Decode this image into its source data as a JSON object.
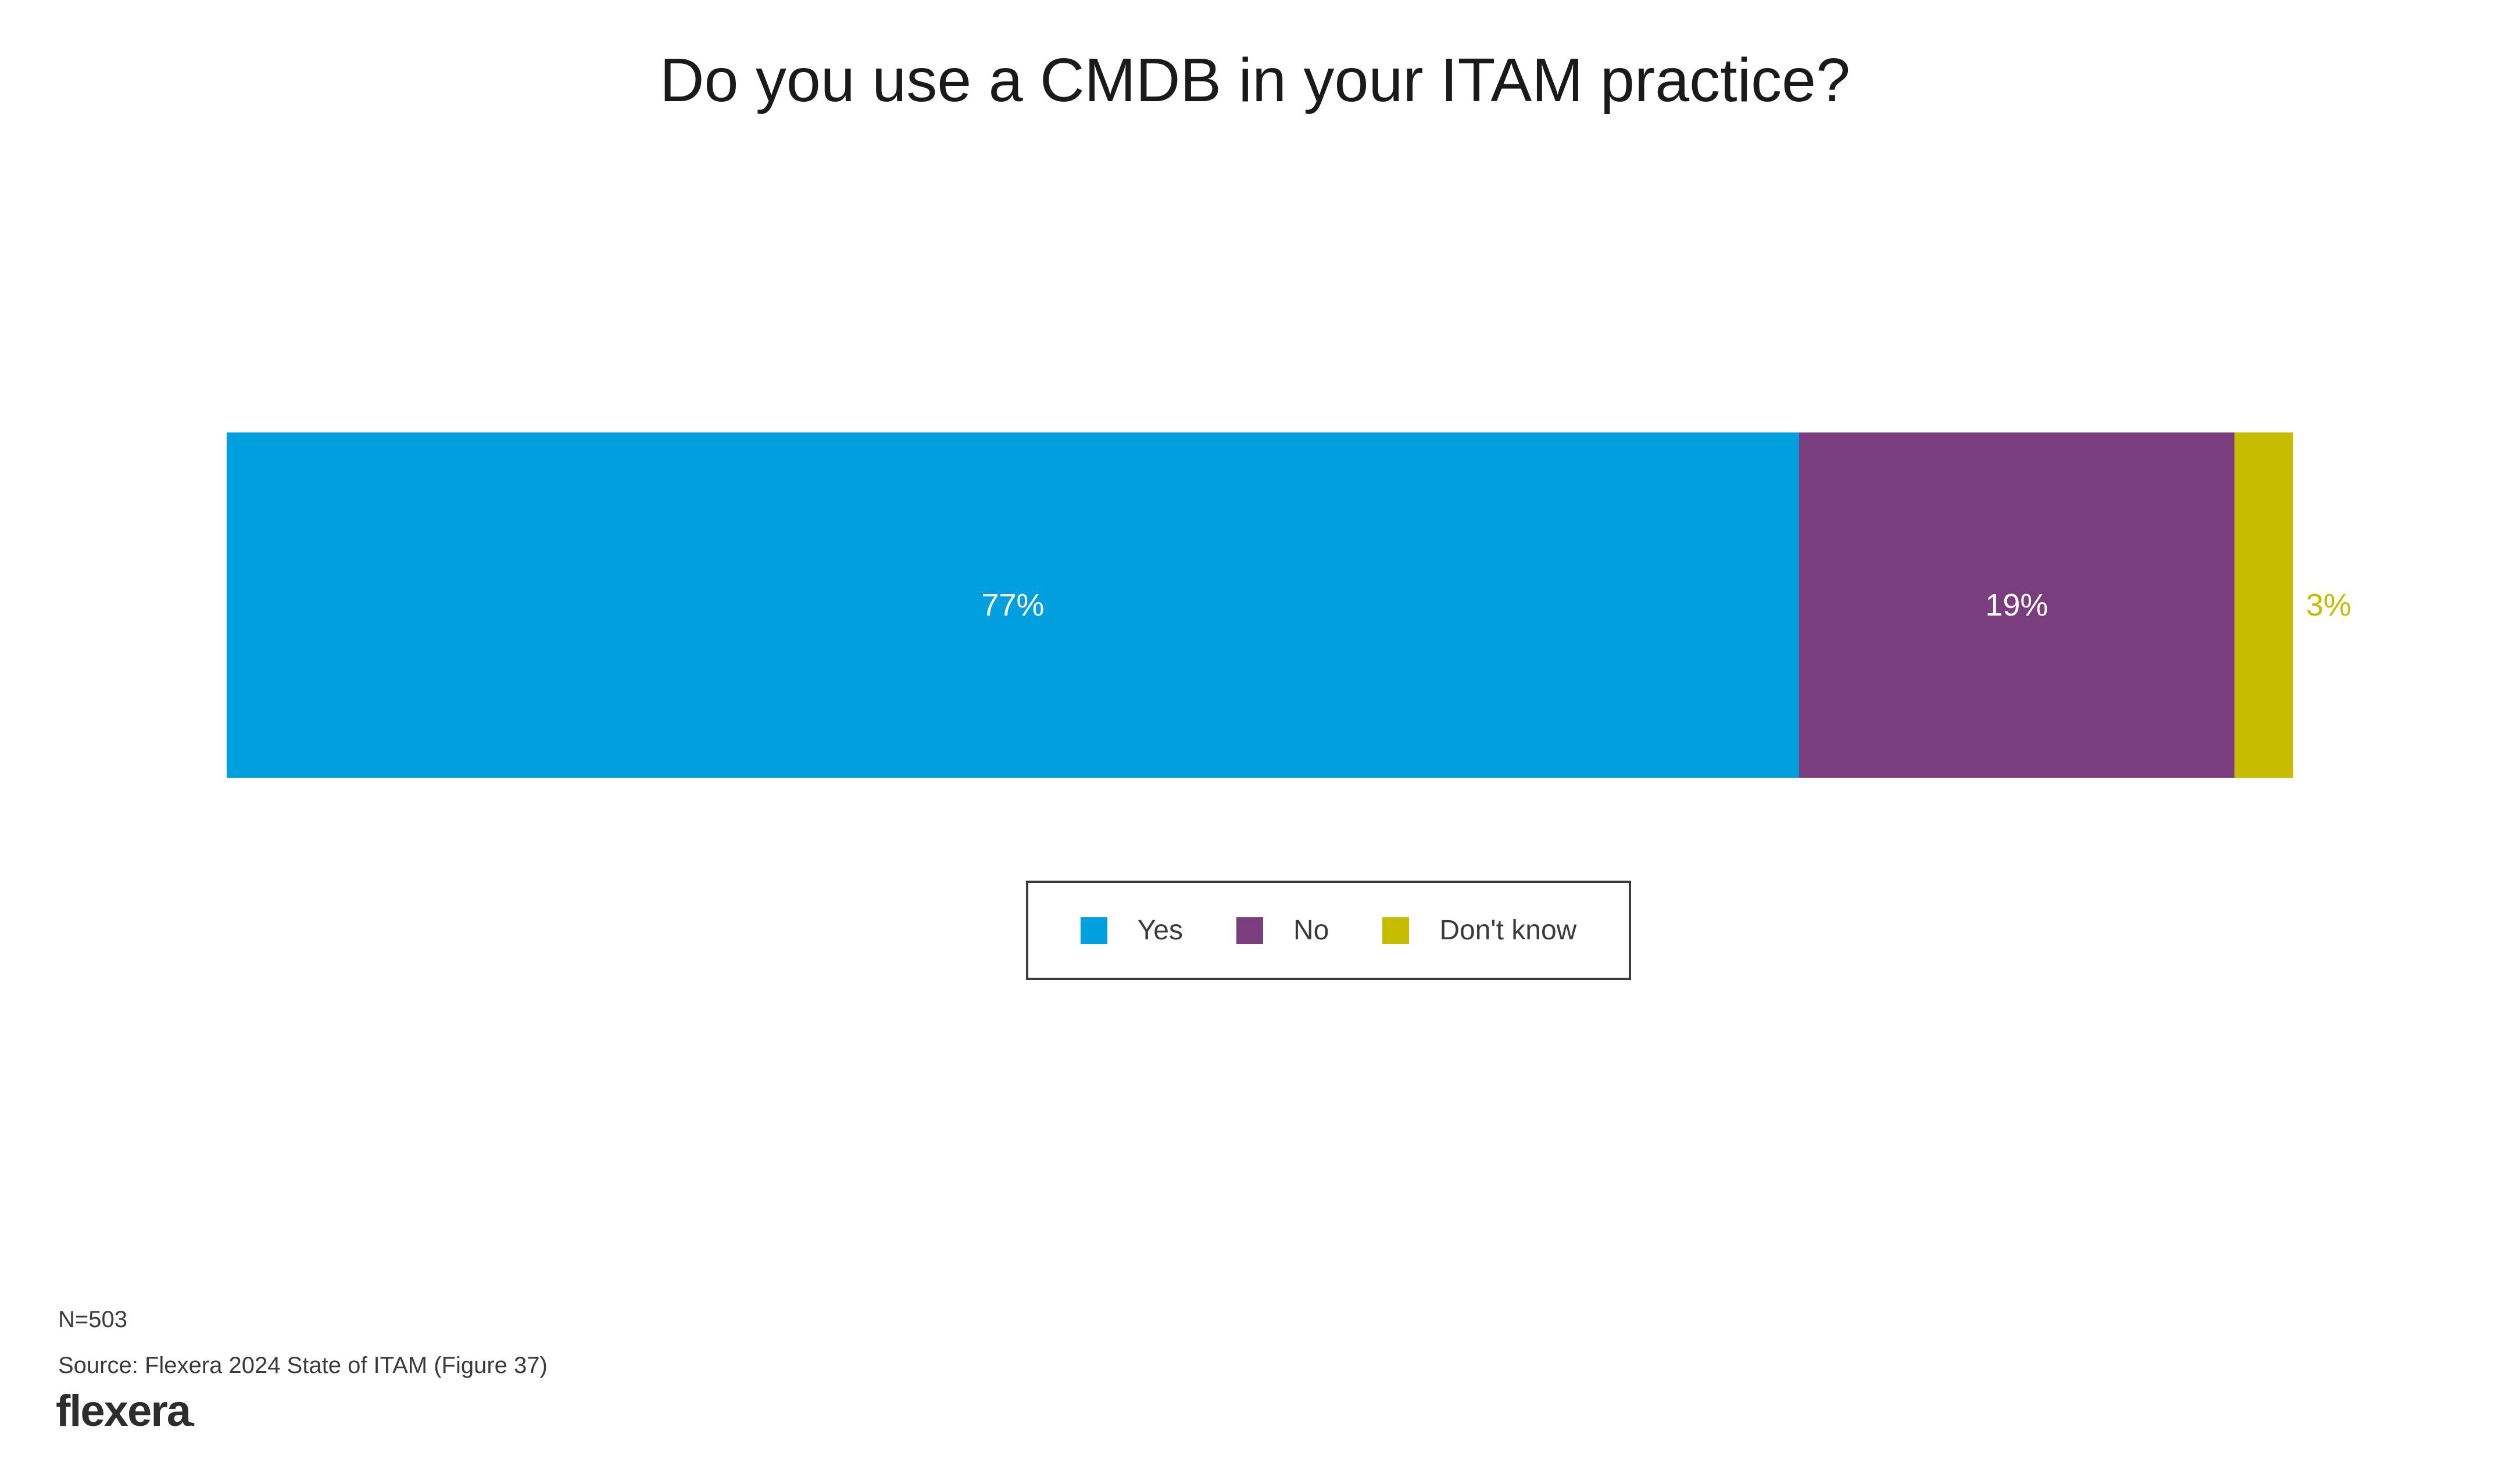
{
  "chart_data": {
    "type": "bar",
    "variant": "horizontal_stacked_single_bar",
    "title": "Do you use a CMDB in your ITAM practice?",
    "categories": [
      "Yes",
      "No",
      "Don't know"
    ],
    "values": [
      77,
      19,
      3
    ],
    "labels": [
      "77%",
      "19%",
      "3%"
    ],
    "colors": [
      "#00A0DF",
      "#7A3E7F",
      "#C7BC00"
    ],
    "label_colors": [
      "#FFFFFF",
      "#FFFFFF",
      "#C7BC00"
    ],
    "label_placement": [
      "inside",
      "inside",
      "outside-right"
    ],
    "xlim": [
      0,
      99
    ],
    "grid": false,
    "axes_visible": false,
    "legend_position": "below-center"
  },
  "legend": {
    "border_color": "#3B3B3B"
  },
  "footer": {
    "sample_size": "N=503",
    "source": "Source: Flexera 2024 State of ITAM (Figure 37)",
    "logo_text": "flexera",
    "logo_suffix": "."
  }
}
